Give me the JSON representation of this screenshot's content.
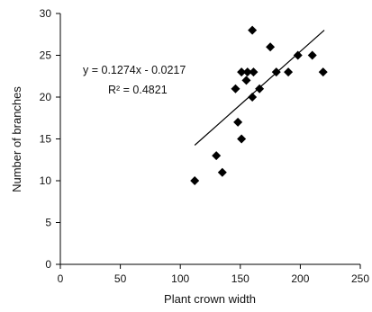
{
  "chart_data": {
    "type": "scatter",
    "title": "",
    "xlabel": "Plant crown width",
    "ylabel": "Number of branches",
    "xlim": [
      0,
      250
    ],
    "ylim": [
      0,
      30
    ],
    "x_ticks": [
      0,
      50,
      100,
      150,
      200,
      250
    ],
    "y_ticks": [
      0,
      5,
      10,
      15,
      20,
      25,
      30
    ],
    "grid": false,
    "legend": "none",
    "marker": "diamond",
    "marker_color": "#000000",
    "points": [
      {
        "x": 112,
        "y": 10
      },
      {
        "x": 130,
        "y": 13
      },
      {
        "x": 135,
        "y": 11
      },
      {
        "x": 146,
        "y": 21
      },
      {
        "x": 148,
        "y": 17
      },
      {
        "x": 151,
        "y": 15
      },
      {
        "x": 151,
        "y": 23
      },
      {
        "x": 155,
        "y": 22
      },
      {
        "x": 156,
        "y": 23
      },
      {
        "x": 160,
        "y": 28
      },
      {
        "x": 160,
        "y": 20
      },
      {
        "x": 161,
        "y": 23
      },
      {
        "x": 166,
        "y": 21
      },
      {
        "x": 175,
        "y": 26
      },
      {
        "x": 180,
        "y": 23
      },
      {
        "x": 190,
        "y": 23
      },
      {
        "x": 198,
        "y": 25
      },
      {
        "x": 210,
        "y": 25
      },
      {
        "x": 219,
        "y": 23
      }
    ],
    "trendline": {
      "slope": 0.1274,
      "intercept": -0.0217,
      "x_range": [
        112,
        220
      ],
      "equation_text": "y = 0.1274x - 0.0217",
      "r2_text": "R² = 0.4821"
    }
  }
}
